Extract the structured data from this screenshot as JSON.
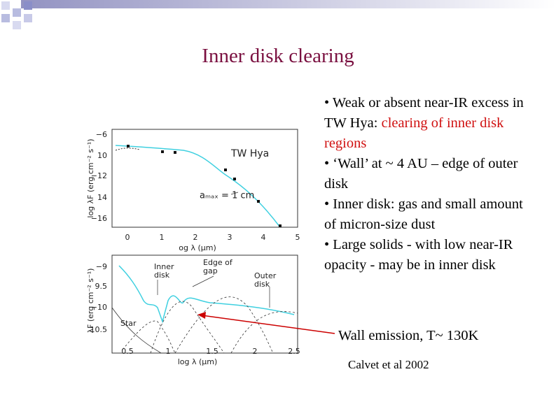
{
  "header": {
    "title": "Inner disk clearing"
  },
  "bullets": [
    {
      "text": "• Weak or absent near-IR excess in TW Hya: ",
      "highlight": "clearing of inner disk regions"
    },
    {
      "text": "• ‘Wall’ at ~ 4 AU – edge of outer disk"
    },
    {
      "text": "• Inner disk: gas and small amount of micron-size dust"
    },
    {
      "text": "• Large solids - with low near-IR opacity - may be in inner disk"
    }
  ],
  "figure": {
    "top": {
      "ylabel": "log λF",
      "ylabel_units": "(erg cm⁻² s⁻¹)",
      "yticks": [
        "−6",
        "10",
        "−12",
        "14",
        "−16"
      ],
      "xticks": [
        "0",
        "1",
        "2",
        "3",
        "4",
        "5"
      ],
      "xlabel": "og λ (μm)",
      "name": "TW  Hya",
      "note": "aₘₐₓ = 1 cm"
    },
    "bottom": {
      "ylabel": "λF",
      "ylabel_units": "(erg cm⁻² s⁻¹)",
      "yticks": [
        "−9",
        "9.5",
        "−10",
        "10.5"
      ],
      "xticks": [
        "0.5",
        "1",
        "1.5",
        "2",
        "2.5"
      ],
      "xlabel": "log λ (μm)",
      "labels": [
        "Inner",
        "disk",
        "Edge of",
        "gap",
        "Outer",
        "disk",
        "Star"
      ]
    }
  },
  "annotation": "Wall emission, T~ 130K",
  "citation": "Calvet et al 2002"
}
